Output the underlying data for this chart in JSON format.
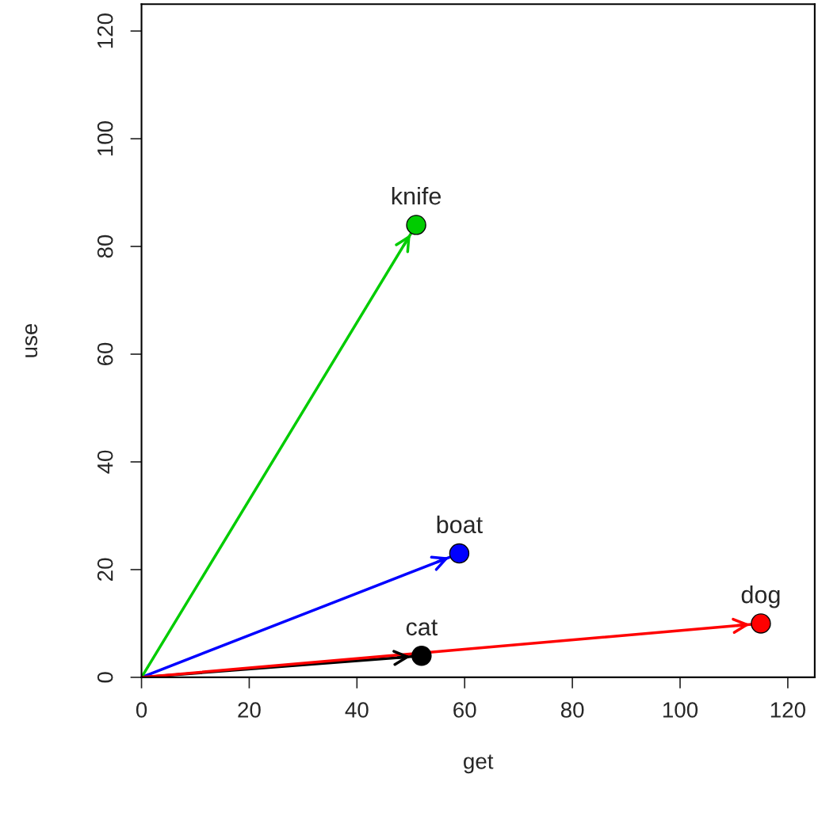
{
  "chart_data": {
    "type": "scatter",
    "xlabel": "get",
    "ylabel": "use",
    "series": [
      {
        "type": "line",
        "marker": "none",
        "color": "#000000",
        "x": [
          0,
          52
        ],
        "values": [
          0,
          4
        ]
      },
      {
        "type": "line",
        "marker": "none",
        "color": "#0000ff",
        "x": [
          0,
          59
        ],
        "values": [
          0,
          23
        ]
      },
      {
        "type": "line",
        "marker": "none",
        "color": "#00cc00",
        "x": [
          0,
          51
        ],
        "values": [
          0,
          84
        ]
      },
      {
        "type": "line",
        "marker": "none",
        "color": "#ff0000",
        "x": [
          0,
          115
        ],
        "values": [
          0,
          10
        ]
      },
      {
        "marker": "circle",
        "x": [
          52,
          59,
          51,
          115
        ],
        "values": [
          4,
          23,
          84,
          10
        ],
        "colors": [
          "#000000",
          "#0000ff",
          "#00cc00",
          "#ff0000"
        ]
      }
    ],
    "annotations": [
      {
        "text": "cat",
        "x": 52,
        "y": 4
      },
      {
        "text": "boat",
        "x": 59,
        "y": 23
      },
      {
        "text": "knife",
        "x": 51,
        "y": 84
      },
      {
        "text": "dog",
        "x": 115,
        "y": 10
      }
    ],
    "xlim": [
      0,
      125
    ],
    "ylim": [
      0,
      125
    ],
    "xticks": [
      0,
      20,
      40,
      60,
      80,
      100,
      120
    ],
    "yticks": [
      0,
      20,
      40,
      60,
      80,
      100,
      120
    ],
    "grid": false,
    "legend": false
  }
}
